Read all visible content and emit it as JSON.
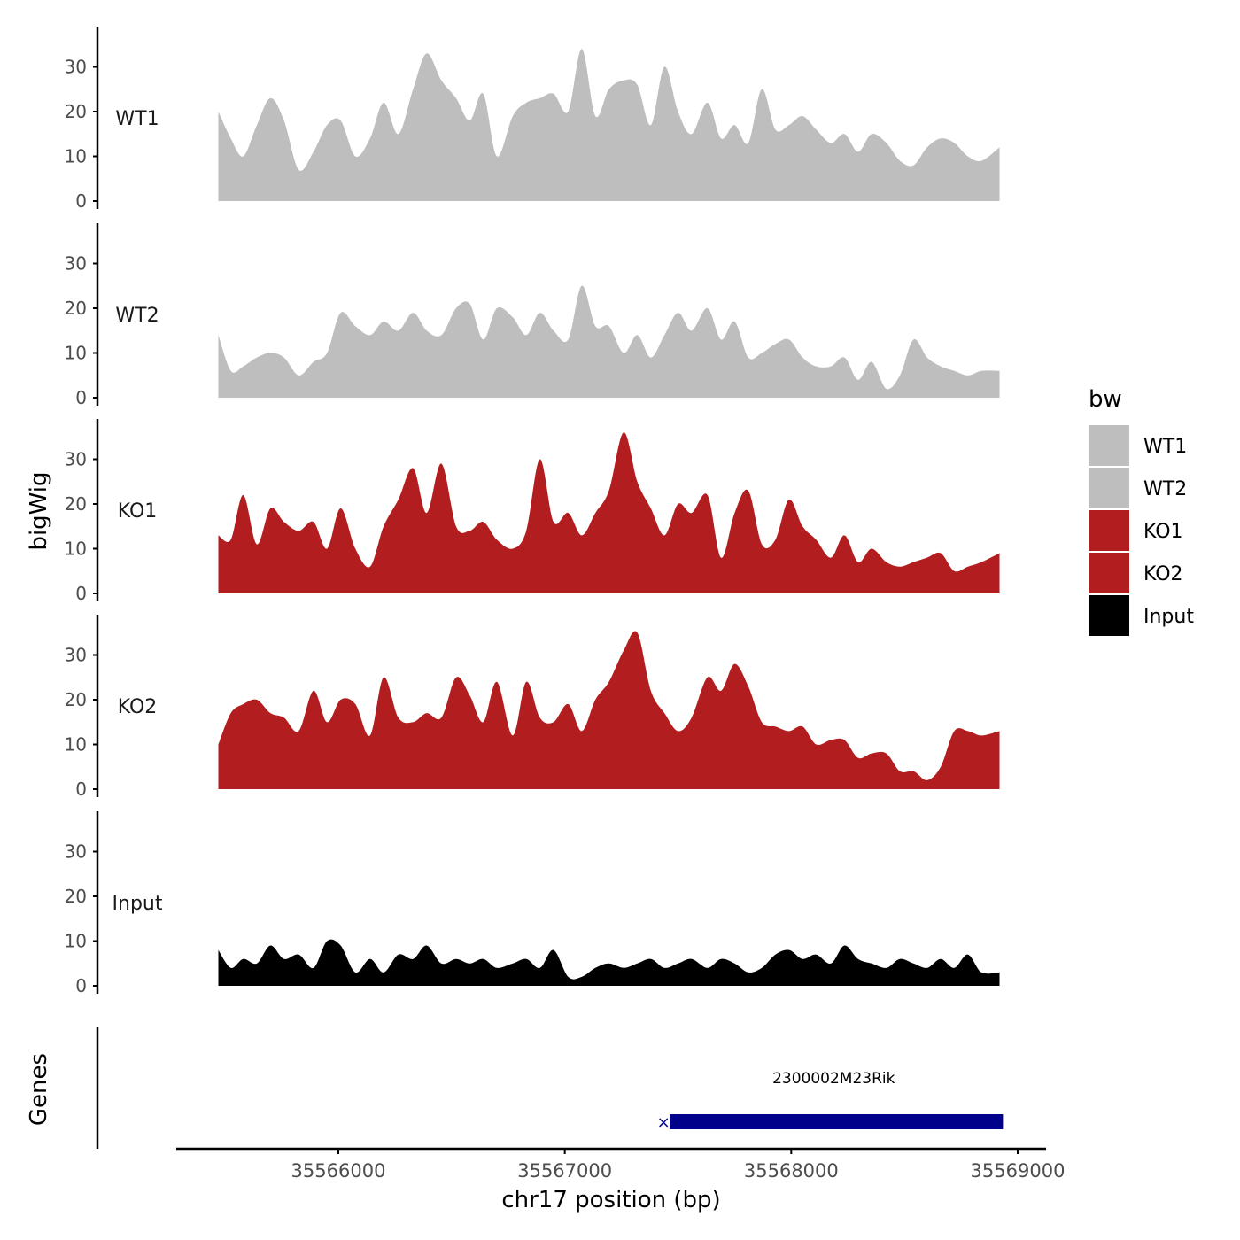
{
  "chart_data": {
    "type": "area",
    "title": "",
    "ylabel": "bigWig",
    "xlabel": "chr17 position (bp)",
    "x_ticks": [
      35566000,
      35567000,
      35568000,
      35569000
    ],
    "x_tick_labels": [
      "35566000",
      "35567000",
      "35568000",
      "35569000"
    ],
    "y_ticks": [
      0,
      10,
      20,
      30
    ],
    "y_tick_labels": [
      "0",
      "10",
      "20",
      "30"
    ],
    "ylim": [
      0,
      38.5
    ],
    "xlim": [
      35565300,
      35569130
    ],
    "grid": false,
    "legend": {
      "title": "bw",
      "placement": "right",
      "entries": [
        {
          "name": "WT1",
          "color": "#bebebe"
        },
        {
          "name": "WT2",
          "color": "#bebebe"
        },
        {
          "name": "KO1",
          "color": "#b21e1f"
        },
        {
          "name": "KO2",
          "color": "#b21e1f"
        },
        {
          "name": "Input",
          "color": "#000000"
        }
      ]
    },
    "x": [
      35565470,
      35565525,
      35565580,
      35565640,
      35565700,
      35565760,
      35565825,
      35565890,
      35565950,
      35566010,
      35566075,
      35566140,
      35566200,
      35566265,
      35566330,
      35566390,
      35566455,
      35566520,
      35566580,
      35566640,
      35566700,
      35566770,
      35566830,
      35566890,
      35566950,
      35567015,
      35567075,
      35567135,
      35567195,
      35567260,
      35567320,
      35567380,
      35567440,
      35567500,
      35567560,
      35567630,
      35567690,
      35567750,
      35567810,
      35567870,
      35567930,
      35567990,
      35568050,
      35568110,
      35568175,
      35568235,
      35568295,
      35568355,
      35568420,
      35568480,
      35568540,
      35568600,
      35568660,
      35568720,
      35568780,
      35568840,
      35568920
    ],
    "series": [
      {
        "name": "WT1",
        "color": "#bebebe",
        "values": [
          20,
          14,
          10,
          17,
          23,
          18,
          7,
          11,
          17,
          18,
          10,
          14,
          22,
          15,
          25,
          33,
          27,
          23,
          18,
          24,
          10,
          19,
          22,
          23,
          24,
          20,
          34,
          19,
          25,
          27,
          26,
          17,
          30,
          20,
          15,
          22,
          14,
          17,
          13,
          25,
          16,
          17,
          19,
          16,
          13,
          15,
          11,
          15,
          13,
          9,
          8,
          12,
          14,
          13,
          10,
          9,
          12
        ]
      },
      {
        "name": "WT2",
        "color": "#bebebe",
        "values": [
          14,
          6,
          7,
          9,
          10,
          9,
          5,
          8,
          10,
          19,
          16,
          14,
          17,
          15,
          19,
          15,
          14,
          20,
          21,
          13,
          20,
          18,
          14,
          19,
          15,
          13,
          25,
          16,
          16,
          10,
          14,
          9,
          14,
          19,
          15,
          20,
          13,
          17,
          9,
          10,
          12,
          13,
          9,
          7,
          7,
          9,
          4,
          8,
          2,
          5,
          13,
          9,
          7,
          6,
          5,
          6,
          6
        ]
      },
      {
        "name": "KO1",
        "color": "#b21e1f",
        "values": [
          13,
          12,
          22,
          11,
          19,
          16,
          14,
          16,
          10,
          19,
          10,
          6,
          15,
          21,
          28,
          18,
          29,
          15,
          14,
          16,
          12,
          10,
          14,
          30,
          16,
          18,
          13,
          18,
          23,
          36,
          25,
          19,
          13,
          20,
          18,
          22,
          8,
          18,
          23,
          11,
          12,
          21,
          15,
          12,
          8,
          13,
          7,
          10,
          7,
          6,
          7,
          8,
          9,
          5,
          6,
          7,
          9
        ]
      },
      {
        "name": "KO2",
        "color": "#b21e1f",
        "values": [
          10,
          17,
          19,
          20,
          17,
          16,
          13,
          22,
          15,
          20,
          19,
          12,
          25,
          16,
          15,
          17,
          16,
          25,
          21,
          15,
          24,
          12,
          24,
          16,
          15,
          19,
          13,
          20,
          24,
          31,
          35,
          22,
          17,
          13,
          16,
          25,
          22,
          28,
          23,
          15,
          14,
          13,
          14,
          10,
          11,
          11,
          7,
          8,
          8,
          4,
          4,
          2,
          5,
          13,
          13,
          12,
          13
        ]
      },
      {
        "name": "Input",
        "color": "#000000",
        "values": [
          8,
          4,
          6,
          5,
          9,
          6,
          7,
          4,
          10,
          9,
          3,
          6,
          3,
          7,
          6,
          9,
          5,
          6,
          5,
          6,
          4,
          5,
          6,
          4,
          8,
          2,
          2,
          4,
          5,
          4,
          5,
          6,
          4,
          5,
          6,
          4,
          6,
          5,
          3,
          4,
          7,
          8,
          6,
          7,
          5,
          9,
          6,
          5,
          4,
          6,
          5,
          4,
          6,
          4,
          7,
          3,
          3
        ]
      }
    ],
    "genes": {
      "ylabel": "Genes",
      "items": [
        {
          "name": "2300002M23Rik",
          "start": 35567440,
          "end": 35568935,
          "color": "#00008b",
          "strand_marker": "×"
        }
      ]
    }
  }
}
